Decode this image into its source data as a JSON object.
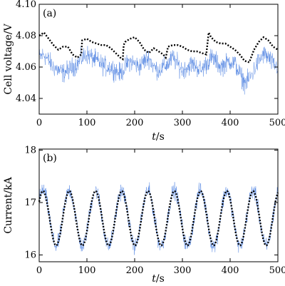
{
  "chart_data": [
    {
      "type": "line",
      "panel_label": "(a)",
      "xlabel_italic": "t",
      "xlabel_unit": "/s",
      "ylabel": "Cell voltage/V",
      "xlim": [
        0,
        500
      ],
      "ylim": [
        4.03,
        4.1
      ],
      "xticks": [
        0,
        100,
        200,
        300,
        400,
        500
      ],
      "yticks": [
        4.04,
        4.06,
        4.08,
        4.1
      ],
      "ytick_labels": [
        "4.04",
        "4.06",
        "4.08",
        "4.10"
      ],
      "grid": false,
      "series": [
        {
          "style": "noisy solid",
          "color": "#4a7fe0",
          "x": [
            0,
            10,
            20,
            30,
            40,
            50,
            60,
            70,
            80,
            90,
            100,
            110,
            120,
            130,
            140,
            150,
            160,
            170,
            180,
            190,
            200,
            210,
            220,
            230,
            240,
            250,
            260,
            270,
            280,
            290,
            300,
            310,
            320,
            330,
            340,
            350,
            360,
            370,
            380,
            390,
            400,
            410,
            420,
            430,
            440,
            450,
            460,
            470,
            480,
            490,
            500
          ],
          "center": [
            4.066,
            4.068,
            4.064,
            4.06,
            4.058,
            4.056,
            4.058,
            4.06,
            4.062,
            4.066,
            4.068,
            4.066,
            4.064,
            4.062,
            4.06,
            4.06,
            4.058,
            4.056,
            4.06,
            4.064,
            4.062,
            4.06,
            4.064,
            4.066,
            4.06,
            4.058,
            4.06,
            4.062,
            4.066,
            4.062,
            4.058,
            4.06,
            4.062,
            4.06,
            4.058,
            4.062,
            4.066,
            4.064,
            4.06,
            4.062,
            4.064,
            4.062,
            4.056,
            4.05,
            4.052,
            4.058,
            4.064,
            4.068,
            4.066,
            4.062,
            4.06
          ],
          "amplitude": 0.009
        },
        {
          "style": "dotted",
          "color": "#000000",
          "x": [
            0,
            10,
            20,
            30,
            40,
            50,
            60,
            70,
            80,
            88,
            90,
            100,
            110,
            120,
            130,
            140,
            150,
            160,
            170,
            175,
            177,
            180,
            190,
            200,
            210,
            220,
            230,
            240,
            250,
            260,
            265,
            270,
            280,
            290,
            300,
            310,
            320,
            330,
            340,
            350,
            355,
            360,
            370,
            380,
            390,
            400,
            410,
            420,
            430,
            440,
            450,
            460,
            470,
            480,
            490,
            500
          ],
          "y": [
            4.08,
            4.082,
            4.078,
            4.074,
            4.071,
            4.073,
            4.073,
            4.068,
            4.066,
            4.068,
            4.077,
            4.078,
            4.076,
            4.075,
            4.074,
            4.074,
            4.072,
            4.069,
            4.066,
            4.065,
            4.074,
            4.076,
            4.078,
            4.079,
            4.076,
            4.071,
            4.069,
            4.072,
            4.07,
            4.068,
            4.066,
            4.073,
            4.074,
            4.074,
            4.073,
            4.071,
            4.07,
            4.07,
            4.069,
            4.068,
            4.082,
            4.079,
            4.076,
            4.075,
            4.075,
            4.073,
            4.071,
            4.068,
            4.064,
            4.063,
            4.071,
            4.076,
            4.079,
            4.077,
            4.073,
            4.071
          ]
        }
      ]
    },
    {
      "type": "line",
      "panel_label": "(b)",
      "xlabel_italic": "t",
      "xlabel_unit": "/s",
      "ylabel": "Current/kA",
      "xlim": [
        0,
        500
      ],
      "ylim": [
        15.87,
        18.02
      ],
      "xticks": [
        0,
        100,
        200,
        300,
        400,
        500
      ],
      "yticks": [
        16,
        17,
        18
      ],
      "ytick_labels": [
        "16",
        "17",
        "18"
      ],
      "grid": false,
      "series": [
        {
          "style": "noisy solid",
          "color": "#4a7fe0",
          "function": "sine",
          "mean": 16.7,
          "amplitude_sine": 0.53,
          "period": 55,
          "peak_at": 8,
          "noise": 0.22
        },
        {
          "style": "dotted",
          "color": "#000000",
          "function": "sine",
          "mean": 16.7,
          "amplitude_sine": 0.52,
          "period": 55,
          "peak_at": 8
        }
      ]
    }
  ]
}
